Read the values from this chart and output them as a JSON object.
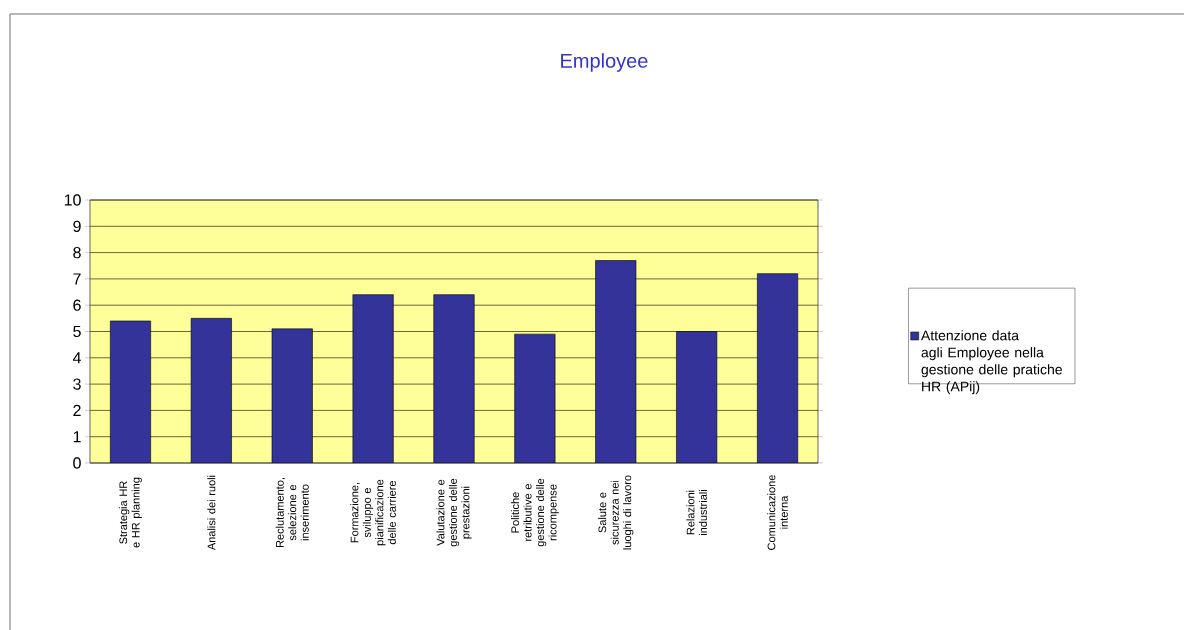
{
  "chart_data": {
    "type": "bar",
    "title": "Employee",
    "categories": [
      "Strategia HR e HR planning",
      "Analisi dei ruoli",
      "Reclutamento, selezione e inserimento",
      "Formazione, sviluppo e pianificazione delle carriere",
      "Valutazione e gestione delle prestazioni",
      "Politiche retributive e gestione delle ricompense",
      "Salute e sicurezza nei luoghi di lavoro",
      "Relazioni industriali",
      "Comunicazione interna"
    ],
    "series": [
      {
        "name": "Attenzione data agli Employee nella gestione delle pratiche HR (APij)",
        "color": "#333399",
        "values": [
          5.4,
          5.5,
          5.1,
          6.4,
          6.4,
          4.9,
          7.7,
          5.0,
          7.2
        ]
      }
    ],
    "ylim": [
      0,
      10
    ],
    "yticks": [
      0,
      1,
      2,
      3,
      4,
      5,
      6,
      7,
      8,
      9,
      10
    ],
    "grid": "y",
    "legend": "right"
  }
}
